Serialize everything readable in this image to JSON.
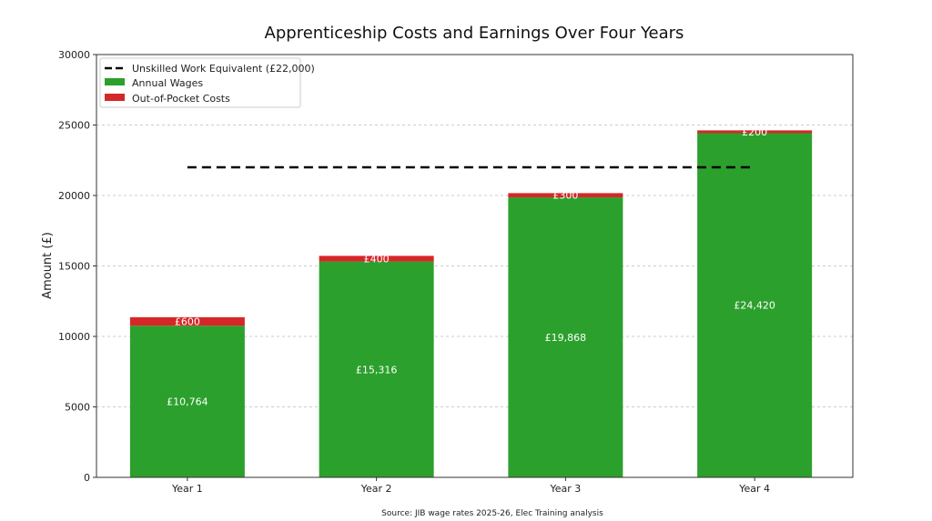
{
  "chart_data": {
    "type": "bar",
    "stacked": true,
    "title": "Apprenticeship Costs and Earnings Over Four Years",
    "xlabel": "",
    "ylabel": "Amount (£)",
    "categories": [
      "Year 1",
      "Year 2",
      "Year 3",
      "Year 4"
    ],
    "series": [
      {
        "name": "Annual Wages",
        "values": [
          10764,
          15316,
          19868,
          24420
        ],
        "labels": [
          "£10,764",
          "£15,316",
          "£19,868",
          "£24,420"
        ],
        "color": "#2ca02c"
      },
      {
        "name": "Out-of-Pocket Costs",
        "values": [
          600,
          400,
          300,
          200
        ],
        "labels": [
          "£600",
          "£400",
          "£300",
          "£200"
        ],
        "color": "#d62728"
      }
    ],
    "reference_line": {
      "name": "Unskilled Work Equivalent (£22,000)",
      "value": 22000,
      "color": "#000000",
      "style": "dashed"
    },
    "ylim": [
      0,
      30000
    ],
    "yticks": [
      0,
      5000,
      10000,
      15000,
      20000,
      25000,
      30000
    ],
    "grid": "y-dashed",
    "legend": "top-left",
    "source": "Source: JIB wage rates 2025-26, Elec Training analysis"
  }
}
